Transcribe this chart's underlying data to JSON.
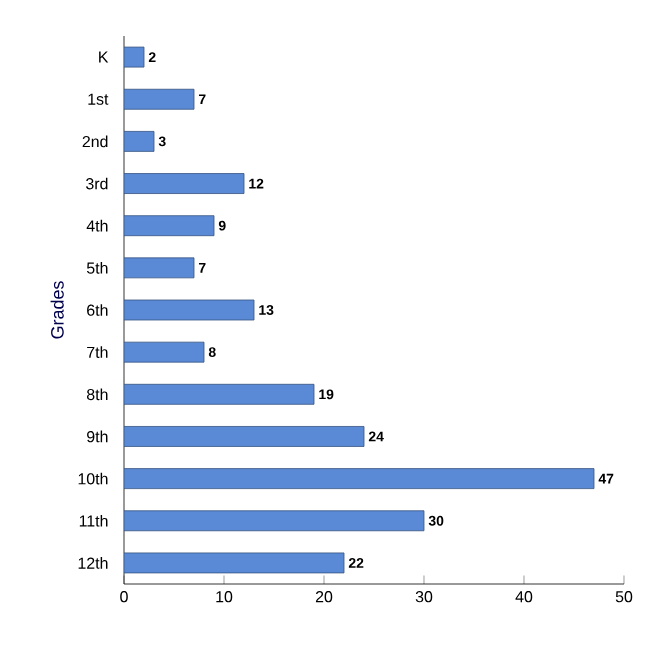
{
  "chart_data": {
    "type": "bar",
    "orientation": "horizontal",
    "ylabel": "Grades",
    "categories": [
      "K",
      "1st",
      "2nd",
      "3rd",
      "4th",
      "5th",
      "6th",
      "7th",
      "8th",
      "9th",
      "10th",
      "11th",
      "12th"
    ],
    "values": [
      2,
      7,
      3,
      12,
      9,
      7,
      13,
      8,
      19,
      24,
      47,
      30,
      22
    ],
    "color": "#5a8ad6",
    "xlim": [
      0,
      50
    ],
    "xticks": [
      0,
      10,
      20,
      30,
      40,
      50
    ],
    "data_labels": true
  }
}
